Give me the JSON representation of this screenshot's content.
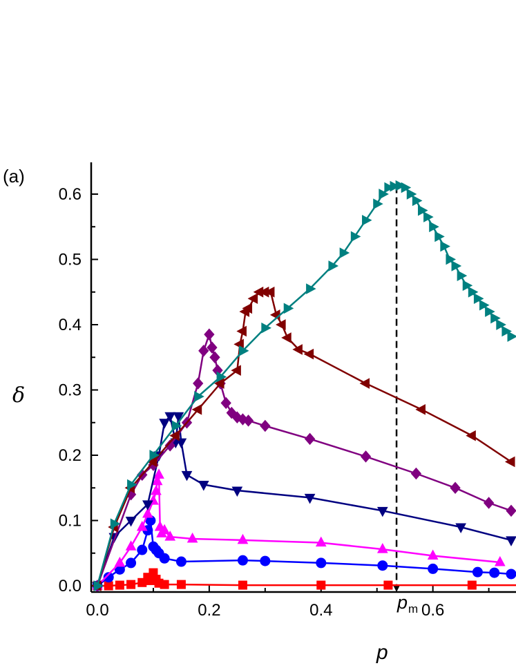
{
  "chart_data": {
    "type": "line",
    "panel_label": "(a)",
    "xlabel": "p",
    "ylabel": "δ",
    "xlim": [
      -0.01,
      0.74
    ],
    "ylim": [
      -0.01,
      0.645
    ],
    "x_ticks": [
      "0.0",
      "0.2",
      "0.4",
      "0.6"
    ],
    "y_ticks": [
      "0.0",
      "0.1",
      "0.2",
      "0.3",
      "0.4",
      "0.5",
      "0.6"
    ],
    "annotation": {
      "text": "p",
      "subscript": "m",
      "x": 0.535
    },
    "series": [
      {
        "color": "#ff0000",
        "marker": "square",
        "x": [
          0,
          0.02,
          0.04,
          0.06,
          0.08,
          0.09,
          0.095,
          0.1,
          0.105,
          0.11,
          0.12,
          0.15,
          0.26,
          0.4,
          0.52,
          0.67,
          0.76
        ],
        "y": [
          0,
          0.0,
          0.001,
          0.002,
          0.005,
          0.013,
          0.008,
          0.02,
          0.01,
          0.004,
          0.002,
          0.002,
          0.001,
          0.001,
          0.001,
          0.001,
          0.001
        ]
      },
      {
        "color": "#0000ff",
        "marker": "circle",
        "x": [
          0,
          0.02,
          0.04,
          0.06,
          0.08,
          0.09,
          0.095,
          0.1,
          0.105,
          0.11,
          0.12,
          0.15,
          0.26,
          0.3,
          0.4,
          0.51,
          0.6,
          0.68,
          0.71,
          0.74
        ],
        "y": [
          0,
          0.013,
          0.025,
          0.035,
          0.055,
          0.085,
          0.1,
          0.06,
          0.055,
          0.05,
          0.042,
          0.037,
          0.039,
          0.038,
          0.035,
          0.031,
          0.026,
          0.021,
          0.02,
          0.018
        ]
      },
      {
        "color": "#ff00ff",
        "marker": "triangle-up",
        "x": [
          0,
          0.04,
          0.06,
          0.08,
          0.09,
          0.1,
          0.105,
          0.107,
          0.11,
          0.112,
          0.115,
          0.12,
          0.13,
          0.17,
          0.26,
          0.4,
          0.51,
          0.6,
          0.72
        ],
        "y": [
          0,
          0.035,
          0.06,
          0.09,
          0.11,
          0.13,
          0.145,
          0.16,
          0.17,
          0.09,
          0.08,
          0.085,
          0.075,
          0.072,
          0.07,
          0.066,
          0.056,
          0.046,
          0.036
        ]
      },
      {
        "color": "#000080",
        "marker": "triangle-down",
        "x": [
          0,
          0.03,
          0.06,
          0.09,
          0.11,
          0.12,
          0.13,
          0.14,
          0.145,
          0.15,
          0.16,
          0.19,
          0.25,
          0.38,
          0.51,
          0.65,
          0.74
        ],
        "y": [
          0,
          0.075,
          0.1,
          0.125,
          0.2,
          0.25,
          0.26,
          0.22,
          0.26,
          0.22,
          0.17,
          0.155,
          0.146,
          0.135,
          0.115,
          0.09,
          0.07
        ]
      },
      {
        "color": "#800080",
        "marker": "diamond",
        "x": [
          0,
          0.06,
          0.08,
          0.1,
          0.13,
          0.16,
          0.18,
          0.19,
          0.2,
          0.205,
          0.21,
          0.215,
          0.22,
          0.23,
          0.24,
          0.25,
          0.26,
          0.27,
          0.3,
          0.38,
          0.48,
          0.57,
          0.64,
          0.7,
          0.74
        ],
        "y": [
          0,
          0.14,
          0.17,
          0.185,
          0.215,
          0.25,
          0.31,
          0.36,
          0.385,
          0.365,
          0.35,
          0.33,
          0.31,
          0.28,
          0.265,
          0.258,
          0.255,
          0.253,
          0.245,
          0.225,
          0.198,
          0.172,
          0.15,
          0.127,
          0.115
        ]
      },
      {
        "color": "#800000",
        "marker": "triangle-left",
        "x": [
          0,
          0.03,
          0.06,
          0.1,
          0.14,
          0.18,
          0.22,
          0.25,
          0.255,
          0.26,
          0.265,
          0.27,
          0.28,
          0.29,
          0.3,
          0.31,
          0.32,
          0.33,
          0.34,
          0.36,
          0.38,
          0.48,
          0.58,
          0.67,
          0.74
        ],
        "y": [
          0,
          0.09,
          0.15,
          0.19,
          0.23,
          0.27,
          0.31,
          0.33,
          0.37,
          0.39,
          0.42,
          0.425,
          0.44,
          0.45,
          0.45,
          0.45,
          0.415,
          0.4,
          0.38,
          0.362,
          0.355,
          0.31,
          0.27,
          0.23,
          0.19
        ]
      },
      {
        "color": "#008080",
        "marker": "triangle-right",
        "x": [
          0,
          0.03,
          0.06,
          0.1,
          0.14,
          0.18,
          0.22,
          0.26,
          0.3,
          0.34,
          0.38,
          0.42,
          0.44,
          0.46,
          0.48,
          0.5,
          0.51,
          0.52,
          0.53,
          0.54,
          0.55,
          0.56,
          0.57,
          0.58,
          0.59,
          0.6,
          0.61,
          0.62,
          0.63,
          0.64,
          0.65,
          0.66,
          0.67,
          0.68,
          0.69,
          0.7,
          0.71,
          0.72,
          0.73,
          0.74
        ],
        "y": [
          0,
          0.095,
          0.155,
          0.2,
          0.245,
          0.29,
          0.32,
          0.36,
          0.395,
          0.425,
          0.455,
          0.49,
          0.51,
          0.535,
          0.56,
          0.585,
          0.6,
          0.61,
          0.612,
          0.613,
          0.61,
          0.6,
          0.59,
          0.575,
          0.565,
          0.55,
          0.535,
          0.52,
          0.5,
          0.49,
          0.475,
          0.46,
          0.45,
          0.44,
          0.43,
          0.42,
          0.41,
          0.4,
          0.39,
          0.382
        ]
      }
    ]
  }
}
